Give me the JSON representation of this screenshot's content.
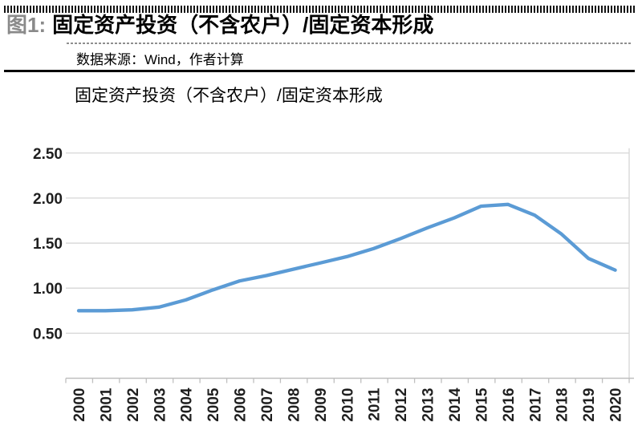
{
  "figure": {
    "label": "图1:",
    "title": "固定资产投资（不含农户）/固定资本形成",
    "source_label": "数据来源：Wind，作者计算"
  },
  "chart_data": {
    "type": "line",
    "title": "固定资产投资（不含农户）/固定资本形成",
    "categories": [
      "2000",
      "2001",
      "2002",
      "2003",
      "2004",
      "2005",
      "2006",
      "2007",
      "2008",
      "2009",
      "2010",
      "2011",
      "2012",
      "2013",
      "2014",
      "2015",
      "2016",
      "2017",
      "2018",
      "2019",
      "2020"
    ],
    "series": [
      {
        "name": "固定资产投资（不含农户）/固定资本形成",
        "values": [
          0.75,
          0.75,
          0.76,
          0.79,
          0.87,
          0.98,
          1.08,
          1.14,
          1.21,
          1.28,
          1.35,
          1.44,
          1.55,
          1.67,
          1.78,
          1.91,
          1.93,
          1.81,
          1.6,
          1.33,
          1.2
        ]
      }
    ],
    "xlabel": "",
    "ylabel": "",
    "ylim": [
      0,
      2.5
    ],
    "yticks": [
      "0.50",
      "1.00",
      "1.50",
      "2.00",
      "2.50"
    ],
    "grid": true,
    "legend": "none",
    "line_color": "#5B9BD5"
  },
  "style": {
    "figure_label_color": "#8a8a8a",
    "gridline_color": "#D6D6D6",
    "axis_color": "#BFBFBF",
    "tick_label_color": "#1f1f1f"
  }
}
